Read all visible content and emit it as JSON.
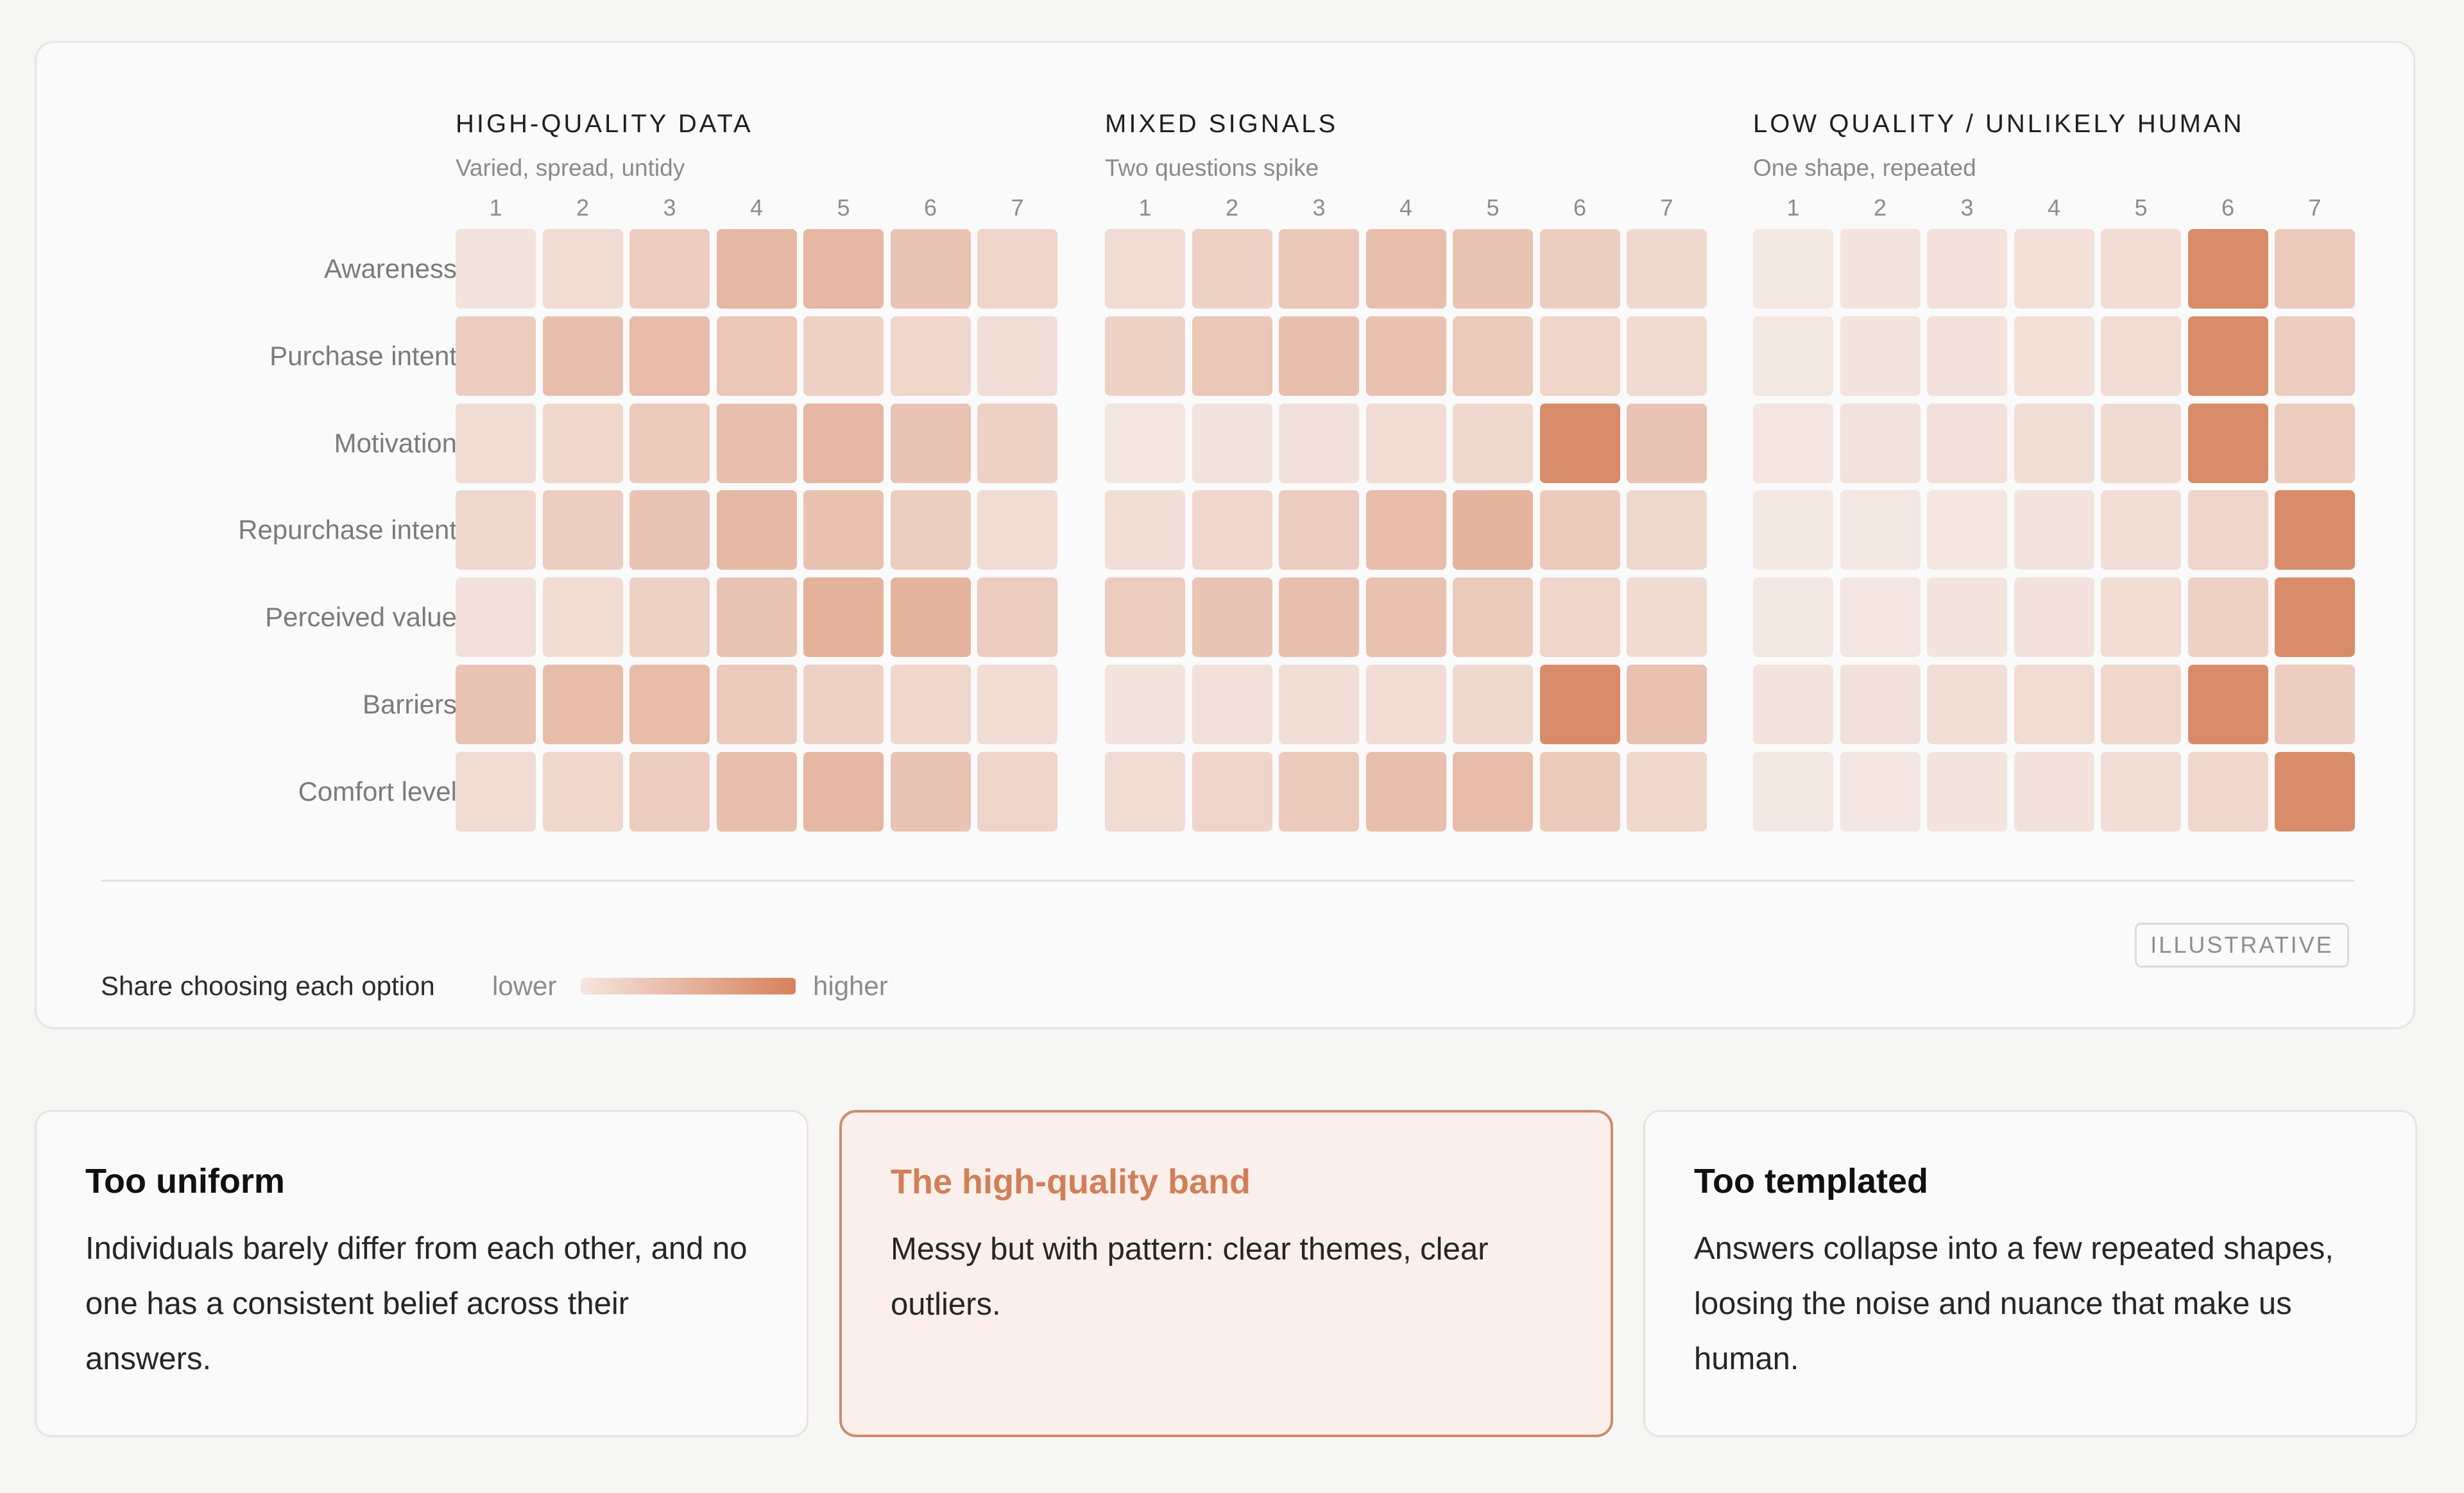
{
  "chart_data": {
    "type": "heatmap",
    "rows": [
      "Awareness",
      "Purchase intent",
      "Motivation",
      "Repurchase intent",
      "Perceived value",
      "Barriers",
      "Comfort level"
    ],
    "columns": [
      "1",
      "2",
      "3",
      "4",
      "5",
      "6",
      "7"
    ],
    "value_range": [
      0,
      1
    ],
    "color_low": "#f5ece8",
    "color_high": "#d6815c",
    "panels": [
      {
        "title": "HIGH-QUALITY DATA",
        "subtitle": "Varied, spread, untidy",
        "values": [
          [
            0.08,
            0.15,
            0.3,
            0.48,
            0.5,
            0.38,
            0.22
          ],
          [
            0.3,
            0.42,
            0.45,
            0.35,
            0.25,
            0.2,
            0.12
          ],
          [
            0.15,
            0.2,
            0.32,
            0.42,
            0.5,
            0.38,
            0.25
          ],
          [
            0.18,
            0.28,
            0.38,
            0.48,
            0.4,
            0.28,
            0.15
          ],
          [
            0.1,
            0.15,
            0.25,
            0.38,
            0.55,
            0.52,
            0.3
          ],
          [
            0.38,
            0.45,
            0.45,
            0.32,
            0.25,
            0.2,
            0.14
          ],
          [
            0.15,
            0.2,
            0.3,
            0.42,
            0.5,
            0.38,
            0.22
          ]
        ]
      },
      {
        "title": "MIXED SIGNALS",
        "subtitle": "Two questions spike",
        "values": [
          [
            0.15,
            0.25,
            0.35,
            0.42,
            0.38,
            0.28,
            0.18
          ],
          [
            0.25,
            0.35,
            0.42,
            0.4,
            0.32,
            0.22,
            0.16
          ],
          [
            0.06,
            0.08,
            0.1,
            0.14,
            0.18,
            0.9,
            0.38
          ],
          [
            0.12,
            0.2,
            0.3,
            0.45,
            0.52,
            0.32,
            0.18
          ],
          [
            0.3,
            0.38,
            0.42,
            0.4,
            0.32,
            0.22,
            0.16
          ],
          [
            0.08,
            0.1,
            0.12,
            0.14,
            0.18,
            0.9,
            0.4
          ],
          [
            0.15,
            0.22,
            0.32,
            0.42,
            0.45,
            0.32,
            0.2
          ]
        ]
      },
      {
        "title": "LOW QUALITY / UNLIKELY HUMAN",
        "subtitle": "One shape, repeated",
        "values": [
          [
            0.05,
            0.07,
            0.09,
            0.11,
            0.14,
            0.9,
            0.32
          ],
          [
            0.05,
            0.07,
            0.09,
            0.11,
            0.15,
            0.9,
            0.3
          ],
          [
            0.06,
            0.08,
            0.1,
            0.12,
            0.16,
            0.9,
            0.3
          ],
          [
            0.04,
            0.05,
            0.06,
            0.08,
            0.12,
            0.22,
            0.9
          ],
          [
            0.05,
            0.06,
            0.07,
            0.09,
            0.14,
            0.25,
            0.9
          ],
          [
            0.08,
            0.1,
            0.12,
            0.15,
            0.2,
            0.9,
            0.28
          ],
          [
            0.05,
            0.06,
            0.07,
            0.09,
            0.12,
            0.2,
            0.9
          ]
        ]
      }
    ]
  },
  "legend": {
    "label": "Share choosing each option",
    "low": "lower",
    "high": "higher"
  },
  "badge": "ILLUSTRATIVE",
  "cards": [
    {
      "title": "Too uniform",
      "body": "Individuals barely differ from each other, and no one has a consistent belief across their answers.",
      "highlight": false
    },
    {
      "title": "The high-quality band",
      "body": "Messy but with pattern: clear themes, clear outliers.",
      "highlight": true
    },
    {
      "title": "Too templated",
      "body": "Answers collapse into a few repeated shapes, loosing the noise and nuance that make us human.",
      "highlight": false
    }
  ]
}
